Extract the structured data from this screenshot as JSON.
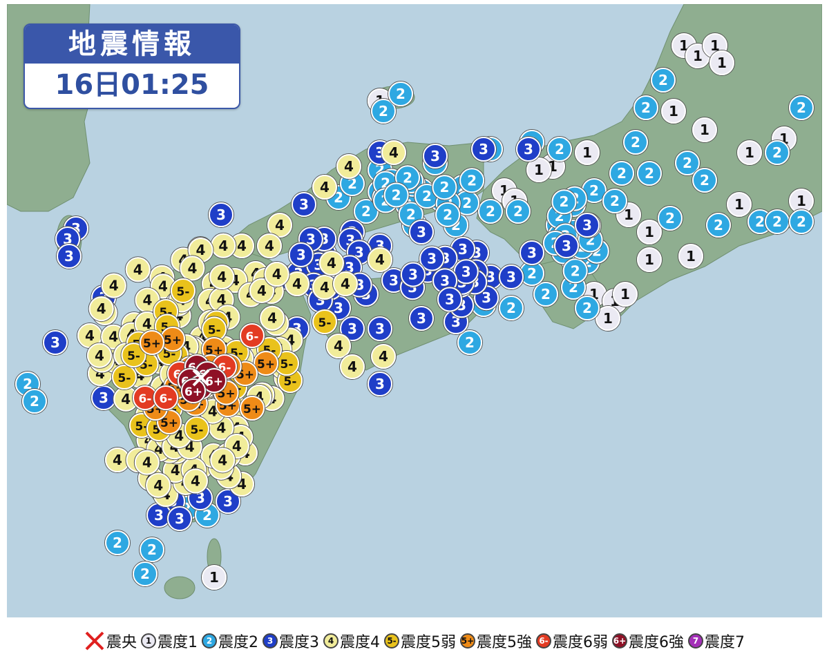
{
  "title": {
    "heading": "地震情報",
    "time": "16日01:25"
  },
  "colors": {
    "sea": "#b9d2e1",
    "land": "#8fae90",
    "s1": "#ebeaf3",
    "s2": "#2ea8e2",
    "s3": "#1f3ec8",
    "s4": "#f1ec9a",
    "s5m": "#e9c21c",
    "s5p": "#ee8b17",
    "s6m": "#e33b22",
    "s6p": "#8f1126",
    "s7": "#a42fb8",
    "epicenter": "#e0201f"
  },
  "legend": [
    {
      "type": "epicenter",
      "icon": "cross",
      "label": "震央"
    },
    {
      "type": "s1",
      "mark": "1",
      "label": "震度1"
    },
    {
      "type": "s2",
      "mark": "2",
      "label": "震度2"
    },
    {
      "type": "s3",
      "mark": "3",
      "label": "震度3"
    },
    {
      "type": "s4",
      "mark": "4",
      "label": "震度4"
    },
    {
      "type": "s5m",
      "mark": "5-",
      "label": "震度5弱"
    },
    {
      "type": "s5p",
      "mark": "5+",
      "label": "震度5強"
    },
    {
      "type": "s6m",
      "mark": "6-",
      "label": "震度6弱"
    },
    {
      "type": "s6p",
      "mark": "6+",
      "label": "震度6強"
    },
    {
      "type": "s7",
      "mark": "7",
      "label": "震度7"
    }
  ]
}
